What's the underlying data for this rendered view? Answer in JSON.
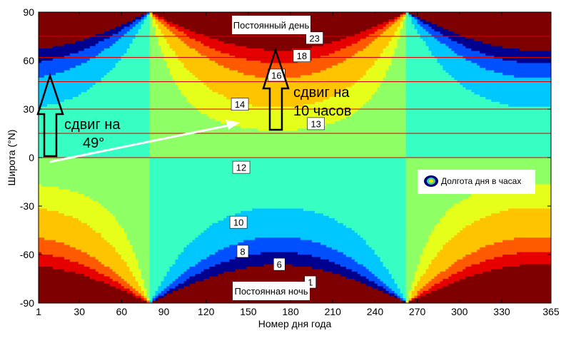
{
  "chart_data": {
    "type": "heatmap",
    "subtype": "filled-contour",
    "title": "",
    "xlabel": "Номер дня года",
    "ylabel": "Широта (°N)",
    "xlim": [
      1,
      365
    ],
    "ylim": [
      -90,
      90
    ],
    "xticks": [
      "1",
      "30",
      "60",
      "90",
      "120",
      "150",
      "180",
      "210",
      "240",
      "270",
      "300",
      "330",
      "365"
    ],
    "xtick_values": [
      1,
      30,
      60,
      90,
      120,
      150,
      180,
      210,
      240,
      270,
      300,
      330,
      365
    ],
    "yticks": [
      "90",
      "60",
      "30",
      "0",
      "-30",
      "-60",
      "-90"
    ],
    "ytick_values": [
      90,
      60,
      30,
      0,
      -30,
      -60,
      -90
    ],
    "quantity": "Day length (hours)",
    "contour_levels": [
      1,
      6,
      8,
      10,
      12,
      13,
      14,
      16,
      18,
      23
    ],
    "level_colors": [
      "#7f0000",
      "#00008f",
      "#0050ff",
      "#00c8ff",
      "#37ffc4",
      "#8fff66",
      "#e6ff1a",
      "#ffc400",
      "#ff5a00",
      "#e60000",
      "#7f0000"
    ],
    "contour_labels": [
      {
        "text": "23",
        "day": 197,
        "lat": 74
      },
      {
        "text": "18",
        "day": 188,
        "lat": 63
      },
      {
        "text": "16",
        "day": 170,
        "lat": 51
      },
      {
        "text": "14",
        "day": 144,
        "lat": 33
      },
      {
        "text": "13",
        "day": 198,
        "lat": 21
      },
      {
        "text": "12",
        "day": 145,
        "lat": -6
      },
      {
        "text": "10",
        "day": 143,
        "lat": -40
      },
      {
        "text": "8",
        "day": 146,
        "lat": -58
      },
      {
        "text": "6",
        "day": 172,
        "lat": -66
      },
      {
        "text": "1",
        "day": 194,
        "lat": -77
      }
    ],
    "reference_latitudes": [
      75,
      62,
      47,
      30,
      15,
      0
    ],
    "legend": "Долгота дня в часах",
    "region_labels": {
      "polar_day": "Постоянный день",
      "polar_night": "Постоянная ночь"
    },
    "annotations": {
      "latitude_shift": [
        "сдвиг на",
        "49°"
      ],
      "daylength_shift": [
        "сдвиг на",
        "10 часов"
      ]
    }
  }
}
